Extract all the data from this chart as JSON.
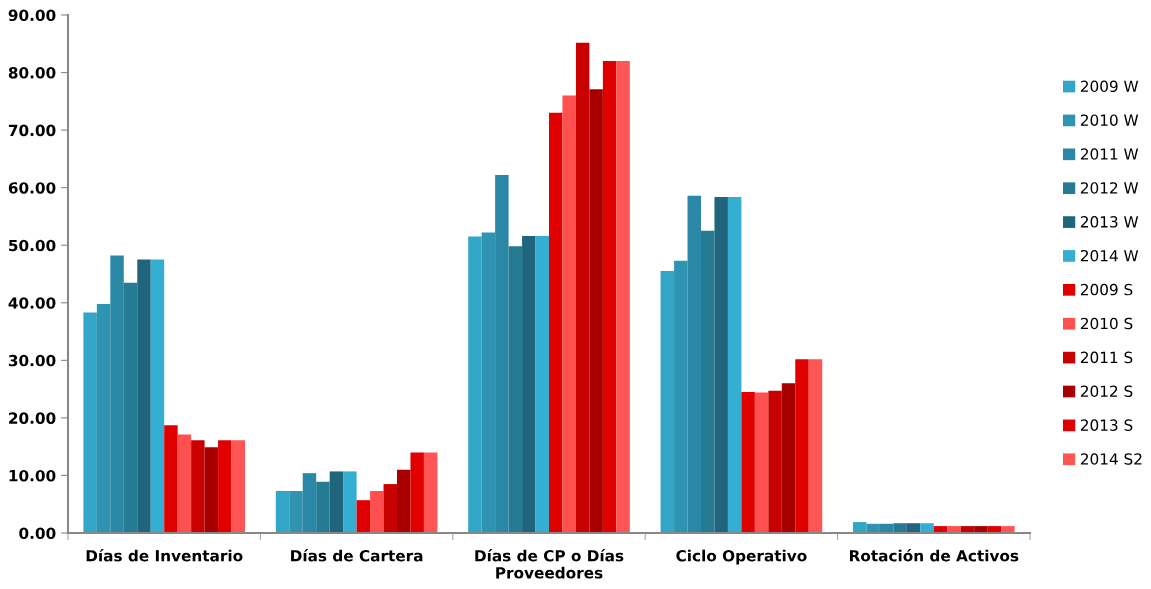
{
  "chart_data": {
    "type": "bar",
    "categories": [
      "Días de Inventario",
      "Días de Cartera",
      "Días de CP o Días\nProveedores",
      "Ciclo Operativo",
      "Rotación de Activos"
    ],
    "ylim": [
      0,
      90
    ],
    "yticks": [
      {
        "value": 0,
        "label": "0.00"
      },
      {
        "value": 10,
        "label": "10.00"
      },
      {
        "value": 20,
        "label": "20.00"
      },
      {
        "value": 30,
        "label": "30.00"
      },
      {
        "value": 40,
        "label": "40.00"
      },
      {
        "value": 50,
        "label": "50.00"
      },
      {
        "value": 60,
        "label": "60.00"
      },
      {
        "value": 70,
        "label": "70.00"
      },
      {
        "value": 80,
        "label": "80.00"
      },
      {
        "value": 90,
        "label": "90.00"
      }
    ],
    "grid": false,
    "legend": "right",
    "series": [
      {
        "name": "2009 W",
        "color": "#31a6c6",
        "values": [
          38.3,
          7.3,
          51.5,
          45.5,
          1.9
        ]
      },
      {
        "name": "2010 W",
        "color": "#2e94b2",
        "values": [
          39.8,
          7.3,
          52.2,
          47.3,
          1.6
        ]
      },
      {
        "name": "2011 W",
        "color": "#2a88a6",
        "values": [
          48.2,
          10.4,
          62.2,
          58.6,
          1.6
        ]
      },
      {
        "name": "2012 W",
        "color": "#257a94",
        "values": [
          43.5,
          8.9,
          49.8,
          52.5,
          1.7
        ]
      },
      {
        "name": "2013 W",
        "color": "#1f667c",
        "values": [
          47.5,
          10.7,
          51.6,
          58.4,
          1.7
        ]
      },
      {
        "name": "2014 W",
        "color": "#34afd2",
        "values": [
          47.5,
          10.7,
          51.6,
          58.4,
          1.7
        ]
      },
      {
        "name": "2009 S",
        "color": "#e00000",
        "values": [
          18.7,
          5.7,
          73.0,
          24.5,
          1.2
        ]
      },
      {
        "name": "2010 S",
        "color": "#ff5050",
        "values": [
          17.1,
          7.3,
          76.0,
          24.4,
          1.2
        ]
      },
      {
        "name": "2011 S",
        "color": "#c80000",
        "values": [
          16.1,
          8.5,
          85.2,
          24.7,
          1.2
        ]
      },
      {
        "name": "2012 S",
        "color": "#a80000",
        "values": [
          14.9,
          11.0,
          77.1,
          26.0,
          1.2
        ]
      },
      {
        "name": "2013 S",
        "color": "#e00000",
        "values": [
          16.1,
          14.0,
          82.0,
          30.2,
          1.2
        ]
      },
      {
        "name": "2014 S2",
        "color": "#ff5555",
        "values": [
          16.1,
          14.0,
          82.0,
          30.2,
          1.2
        ]
      }
    ]
  }
}
